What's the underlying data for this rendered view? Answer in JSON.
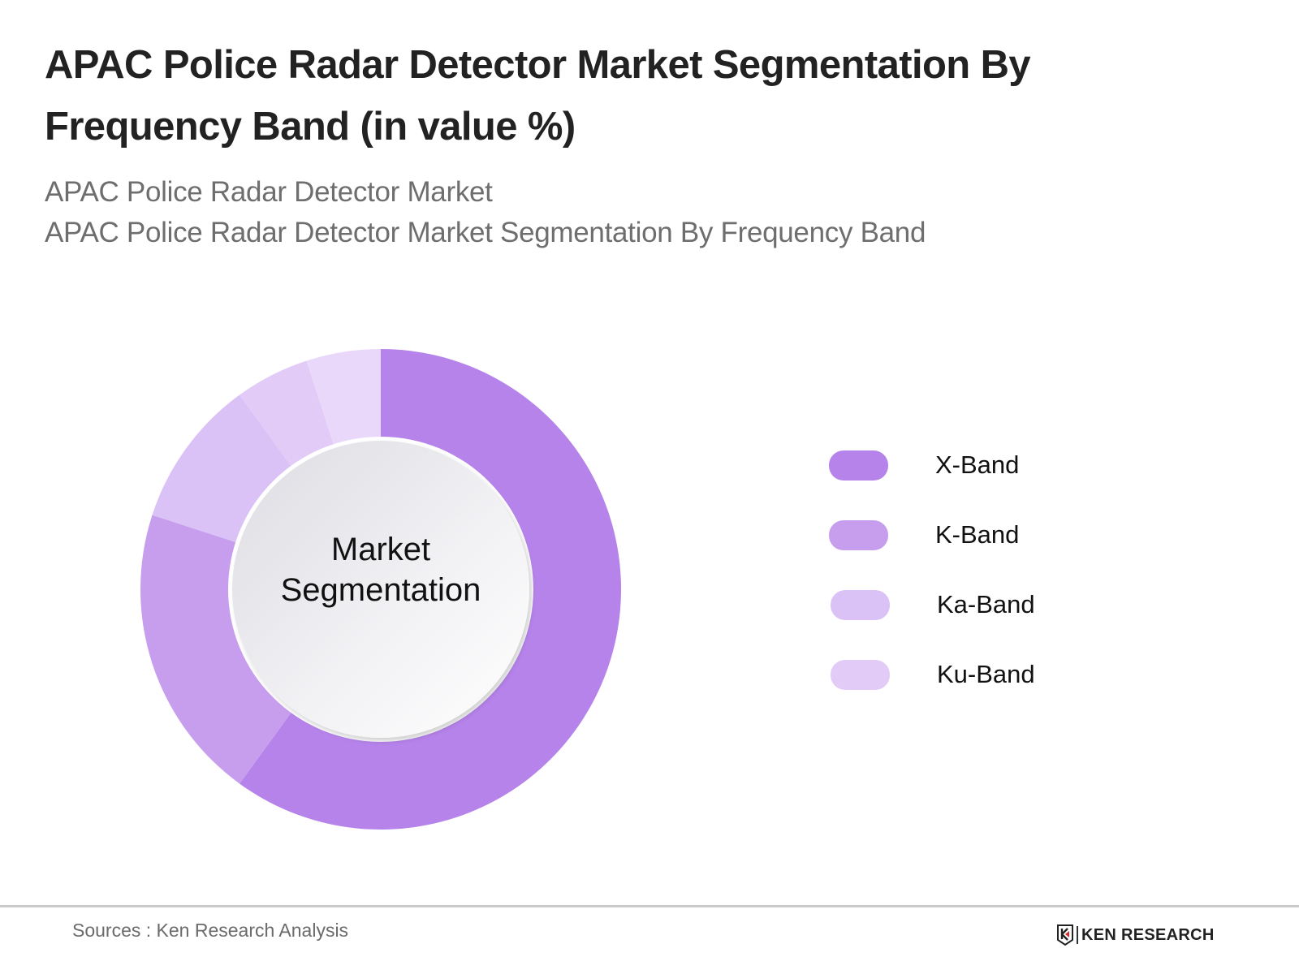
{
  "header": {
    "title_line1": "APAC Police Radar Detector Market Segmentation By",
    "title_line2": "Frequency Band (in value %)",
    "subtitle_line1": "APAC Police Radar Detector Market",
    "subtitle_line2": "APAC Police Radar Detector Market Segmentation By Frequency Band"
  },
  "chart": {
    "center_line1": "Market",
    "center_line2": "Segmentation"
  },
  "legend": [
    {
      "label": "X-Band",
      "color": "#B583EA"
    },
    {
      "label": "K-Band",
      "color": "#C79EEE"
    },
    {
      "label": "Ka-Band",
      "color": "#DBC2F6"
    },
    {
      "label": "Ku-Band",
      "color": "#E2CCF7"
    }
  ],
  "footer": {
    "source": "Sources : Ken Research Analysis",
    "logo_text": "KEN RESEARCH"
  },
  "chart_data": {
    "type": "pie",
    "variant": "donut",
    "title": "APAC Police Radar Detector Market Segmentation By Frequency Band (in value %)",
    "subtitle": "APAC Police Radar Detector Market Segmentation By Frequency Band",
    "center_label": "Market Segmentation",
    "categories": [
      "X-Band",
      "K-Band",
      "Ka-Band",
      "Ku-Band",
      "Other (unlabeled)"
    ],
    "values": [
      60,
      20,
      10,
      5,
      5
    ],
    "colors": [
      "#B583EA",
      "#C79EEE",
      "#DBC2F6",
      "#E2CCF7",
      "#E9D8FA"
    ],
    "start_angle": "12 o'clock, clockwise",
    "legend_position": "right",
    "unit": "%"
  }
}
